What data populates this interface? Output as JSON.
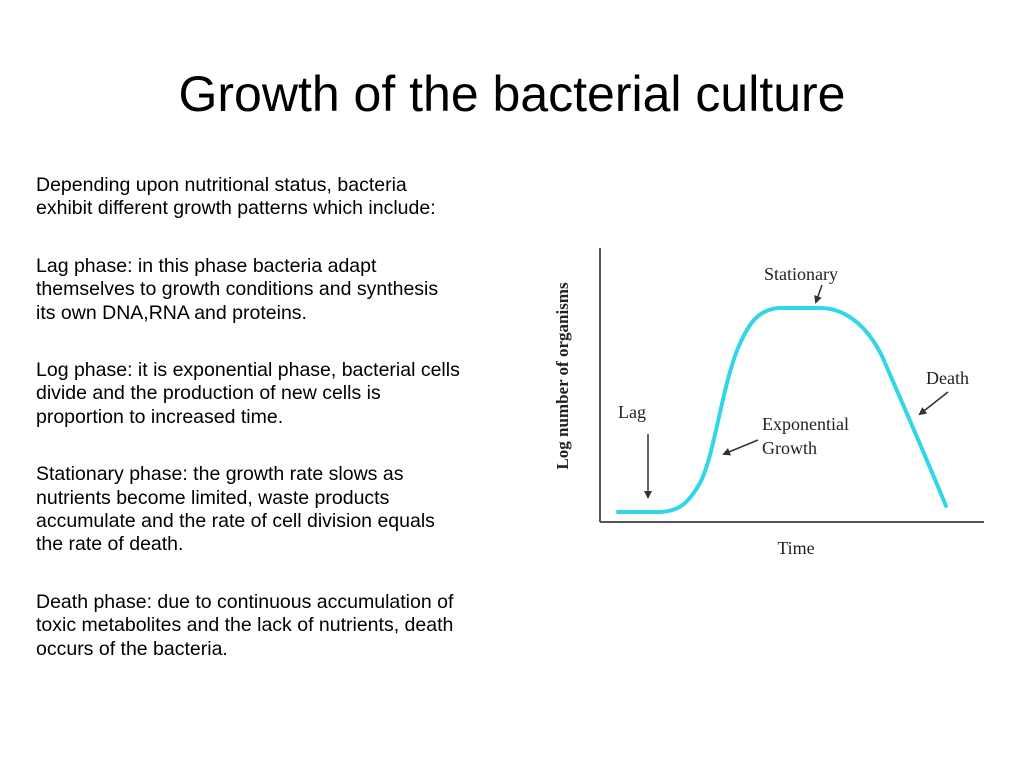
{
  "slide": {
    "title": "Growth of the bacterial culture",
    "paragraphs": [
      "Depending upon nutritional status, bacteria\nexhibit different growth patterns which include:",
      "Lag phase: in this phase bacteria adapt\nthemselves to growth conditions and  synthesis\nits own DNA,RNA and proteins.",
      "Log phase: it  is exponential phase, bacterial cells\ndivide and the production of new cells is\nproportion  to increased time.",
      "Stationary phase: the growth rate slows as\nnutrients become limited, waste products\naccumulate and the rate of cell division equals\nthe rate of  death.",
      "Death phase: due to continuous  accumulation of\ntoxic metabolites and the lack of nutrients, death\noccurs of the bacteria."
    ]
  },
  "diagram": {
    "ylabel": "Log number of organisms",
    "xlabel": "Time",
    "curve_color": "#33d6e8",
    "axis_color": "#555555",
    "labels": {
      "lag": "Lag",
      "stationary": "Stationary",
      "exponential_line1": "Exponential",
      "exponential_line2": "Growth",
      "death": "Death"
    }
  }
}
